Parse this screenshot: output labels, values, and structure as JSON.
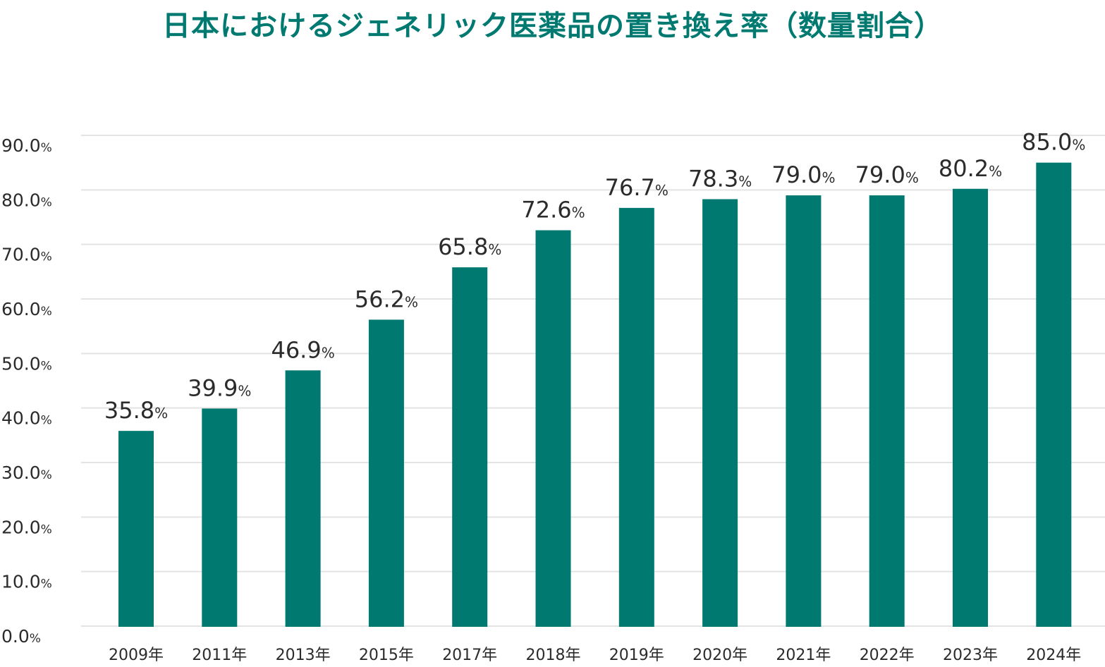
{
  "chart_data": {
    "type": "bar",
    "title": "日本におけるジェネリック医薬品の置き換え率（数量割合）",
    "xlabel": "",
    "ylabel": "",
    "ylim": [
      0,
      90
    ],
    "grid": true,
    "bar_color": "#007a70",
    "grid_color": "#e3e3e3",
    "title_color": "#007a70",
    "unit_suffix": "%",
    "categories": [
      "2009年",
      "2011年",
      "2013年",
      "2015年",
      "2017年",
      "2018年",
      "2019年",
      "2020年",
      "2021年",
      "2022年",
      "2023年",
      "2024年"
    ],
    "values": [
      35.8,
      39.9,
      46.9,
      56.2,
      65.8,
      72.6,
      76.7,
      78.3,
      79.0,
      79.0,
      80.2,
      85.0
    ],
    "data_labels": [
      "35.8",
      "39.9",
      "46.9",
      "56.2",
      "65.8",
      "72.6",
      "76.7",
      "78.3",
      "79.0",
      "79.0",
      "80.2",
      "85.0"
    ],
    "y_ticks": [
      0,
      10,
      20,
      30,
      40,
      50,
      60,
      70,
      80,
      90
    ],
    "y_tick_labels": [
      "0.0",
      "10.0",
      "20.0",
      "30.0",
      "40.0",
      "50.0",
      "60.0",
      "70.0",
      "80.0",
      "90.0"
    ]
  }
}
